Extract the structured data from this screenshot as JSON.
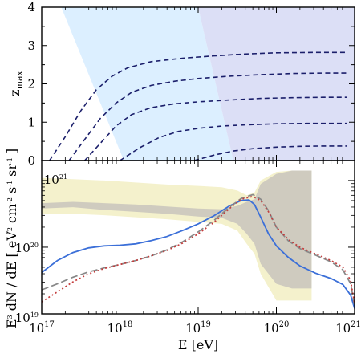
{
  "chart_data": [
    {
      "type": "line",
      "panel": "top",
      "ylabel_main": "z",
      "ylabel_sub": "max",
      "xlim_log10": [
        17,
        21
      ],
      "ylim": [
        0,
        4
      ],
      "yticks": [
        0,
        1,
        2,
        3,
        4
      ],
      "ytick_labels": [
        "0",
        "1",
        "2",
        "3",
        "4"
      ],
      "grid": false,
      "shaded_regions": [
        {
          "color": "#dcefff",
          "description": "light blue wedge",
          "polygon": [
            [
              17.25,
              4
            ],
            [
              19.0,
              4
            ],
            [
              19.45,
              0
            ],
            [
              18.05,
              0
            ]
          ]
        },
        {
          "color": "#dcdff6",
          "description": "lavender region",
          "polygon": [
            [
              19.0,
              4
            ],
            [
              21,
              4
            ],
            [
              21,
              0
            ],
            [
              19.45,
              0
            ]
          ]
        }
      ],
      "series": [
        {
          "x": [
            17.1,
            17.3,
            17.5,
            17.7,
            17.9,
            18.1,
            18.4,
            18.8,
            19.2,
            19.6,
            20.0,
            20.5,
            20.9
          ],
          "values": [
            0.0,
            0.62,
            1.3,
            1.85,
            2.2,
            2.42,
            2.58,
            2.67,
            2.73,
            2.78,
            2.81,
            2.82,
            2.82
          ]
        },
        {
          "x": [
            17.35,
            17.55,
            17.75,
            17.95,
            18.15,
            18.4,
            18.7,
            19.0,
            19.4,
            19.8,
            20.2,
            20.6,
            20.9
          ],
          "values": [
            0.0,
            0.55,
            1.1,
            1.5,
            1.78,
            1.96,
            2.07,
            2.14,
            2.2,
            2.24,
            2.27,
            2.28,
            2.28
          ]
        },
        {
          "x": [
            17.55,
            17.75,
            17.95,
            18.15,
            18.4,
            18.7,
            19.0,
            19.4,
            19.8,
            20.2,
            20.6,
            20.9
          ],
          "values": [
            0.0,
            0.45,
            0.9,
            1.2,
            1.38,
            1.48,
            1.53,
            1.58,
            1.62,
            1.64,
            1.65,
            1.65
          ]
        },
        {
          "x": [
            18.0,
            18.25,
            18.5,
            18.75,
            19.0,
            19.3,
            19.6,
            20.0,
            20.4,
            20.8,
            20.9
          ],
          "values": [
            0.0,
            0.33,
            0.6,
            0.76,
            0.84,
            0.9,
            0.93,
            0.96,
            0.97,
            0.97,
            0.97
          ]
        },
        {
          "x": [
            18.95,
            19.2,
            19.45,
            19.7,
            20.0,
            20.3,
            20.6,
            20.9
          ],
          "values": [
            0.0,
            0.14,
            0.25,
            0.31,
            0.35,
            0.37,
            0.38,
            0.38
          ]
        }
      ]
    },
    {
      "type": "line",
      "panel": "bottom",
      "xlabel": "E [eV]",
      "ylabel": "E",
      "ylabel_parts": [
        "E",
        "3",
        " dN / dE [ eV",
        "2",
        " cm",
        "-2",
        " s",
        "-1",
        " sr",
        "-1",
        " ]"
      ],
      "xlim_log10": [
        17,
        21
      ],
      "ylim_log10": [
        19,
        21.3
      ],
      "xticks_log10": [
        17,
        18,
        19,
        20,
        21
      ],
      "xtick_labels": [
        {
          "base": "10",
          "exp": "17"
        },
        {
          "base": "10",
          "exp": "18"
        },
        {
          "base": "10",
          "exp": "19"
        },
        {
          "base": "10",
          "exp": "20"
        },
        {
          "base": "10",
          "exp": "21"
        }
      ],
      "yticks_log10": [
        19,
        20,
        21
      ],
      "ytick_labels": [
        {
          "base": "10",
          "exp": "19"
        },
        {
          "base": "10",
          "exp": "20"
        },
        {
          "base": "10",
          "exp": "21"
        }
      ],
      "grid": false,
      "bands": [
        {
          "color": "#f4f1cc",
          "x": [
            17.0,
            17.4,
            17.8,
            18.2,
            18.6,
            19.0,
            19.3,
            19.5,
            19.62,
            19.72,
            19.8,
            20.0,
            20.2,
            20.45
          ],
          "upper": [
            21.04,
            21.02,
            21.0,
            20.97,
            20.94,
            20.92,
            20.9,
            20.85,
            20.78,
            20.82,
            21.0,
            21.13,
            21.15,
            21.15
          ],
          "lower": [
            20.5,
            20.5,
            20.48,
            20.45,
            20.42,
            20.38,
            20.35,
            20.25,
            20.05,
            19.9,
            19.6,
            19.2,
            19.2,
            19.2
          ]
        },
        {
          "color": "#cfcbbf",
          "x": [
            17.0,
            17.4,
            17.8,
            18.2,
            18.6,
            19.0,
            19.3,
            19.5,
            19.62,
            19.72,
            19.8,
            20.0,
            20.2,
            20.45
          ],
          "upper": [
            20.66,
            20.68,
            20.66,
            20.64,
            20.61,
            20.58,
            20.57,
            20.62,
            20.68,
            20.72,
            20.95,
            21.1,
            21.15,
            21.15
          ],
          "lower": [
            20.58,
            20.6,
            20.56,
            20.53,
            20.5,
            20.46,
            20.44,
            20.35,
            20.2,
            20.05,
            19.75,
            19.45,
            19.38,
            19.38
          ]
        }
      ],
      "series": [
        {
          "color": "#3b6fd8",
          "style": "solid",
          "x": [
            17.0,
            17.2,
            17.4,
            17.6,
            17.8,
            18.0,
            18.2,
            18.4,
            18.6,
            18.8,
            19.0,
            19.2,
            19.4,
            19.55,
            19.65,
            19.72,
            19.8,
            19.9,
            20.0,
            20.15,
            20.3,
            20.5,
            20.7,
            20.85,
            20.95,
            21.0
          ],
          "values": [
            19.62,
            19.8,
            19.92,
            19.99,
            20.02,
            20.03,
            20.05,
            20.1,
            20.16,
            20.25,
            20.35,
            20.47,
            20.62,
            20.7,
            20.71,
            20.64,
            20.45,
            20.2,
            20.02,
            19.85,
            19.72,
            19.61,
            19.53,
            19.44,
            19.28,
            19.08
          ]
        },
        {
          "color": "#888888",
          "style": "dashed",
          "x": [
            17.0,
            17.2,
            17.4,
            17.6,
            17.8,
            18.0,
            18.2,
            18.4,
            18.6,
            18.8,
            19.0,
            19.2,
            19.4,
            19.55,
            19.7,
            19.8,
            19.9,
            20.0,
            20.15,
            20.3,
            20.5,
            20.7,
            20.85,
            20.95,
            21.0
          ],
          "values": [
            19.36,
            19.45,
            19.55,
            19.63,
            19.69,
            19.74,
            19.8,
            19.87,
            19.96,
            20.08,
            20.23,
            20.4,
            20.6,
            20.73,
            20.79,
            20.72,
            20.55,
            20.3,
            20.1,
            19.98,
            19.88,
            19.78,
            19.66,
            19.45,
            19.12
          ]
        },
        {
          "color": "#c43c3c",
          "style": "dotted",
          "x": [
            17.0,
            17.2,
            17.4,
            17.6,
            17.8,
            18.0,
            18.2,
            18.4,
            18.6,
            18.8,
            19.0,
            19.2,
            19.4,
            19.55,
            19.7,
            19.8,
            19.9,
            20.0,
            20.15,
            20.3,
            20.5,
            20.7,
            20.85,
            20.95,
            21.0
          ],
          "values": [
            19.18,
            19.33,
            19.48,
            19.6,
            19.68,
            19.74,
            19.8,
            19.87,
            19.95,
            20.06,
            20.2,
            20.37,
            20.58,
            20.72,
            20.76,
            20.7,
            20.53,
            20.3,
            20.12,
            20.0,
            19.9,
            19.8,
            19.7,
            19.5,
            19.15
          ]
        }
      ]
    }
  ]
}
